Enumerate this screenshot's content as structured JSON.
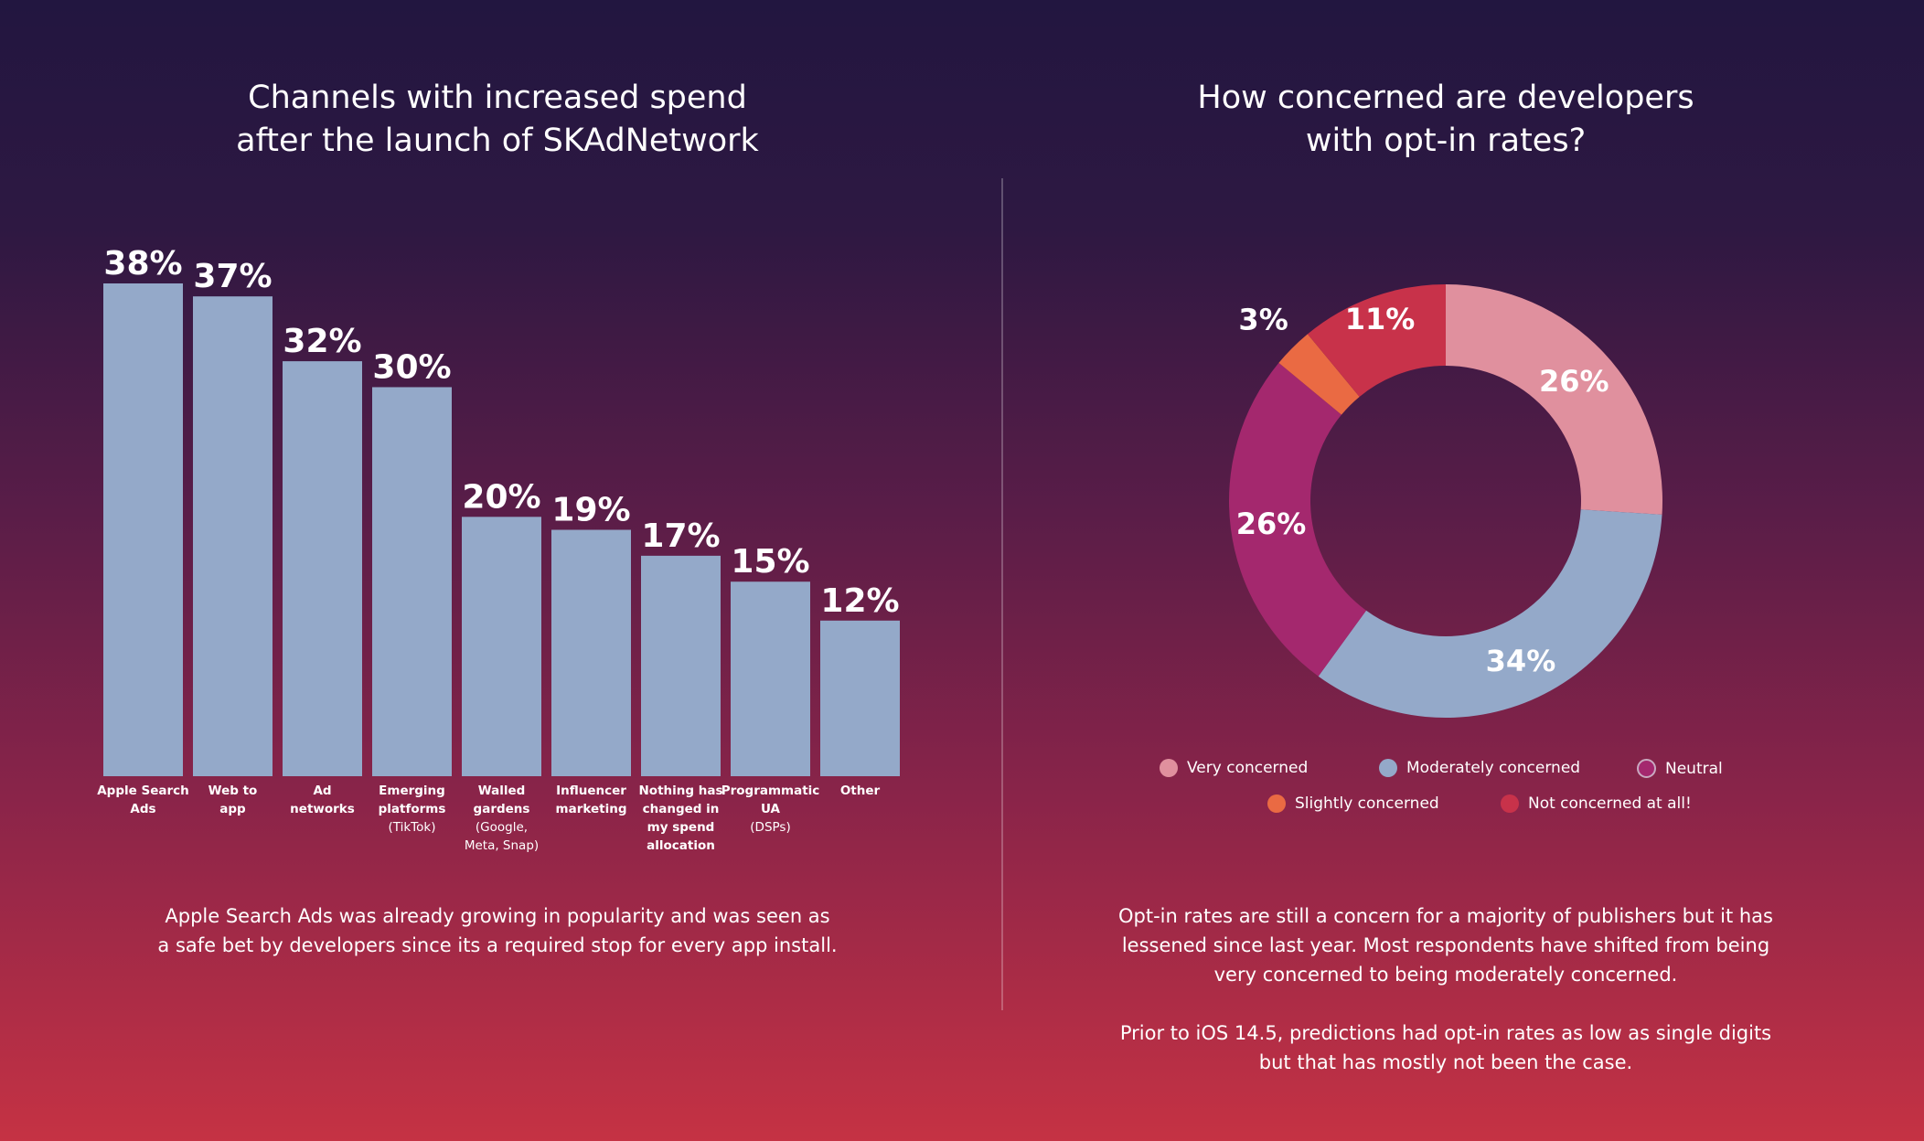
{
  "chart_data": [
    {
      "type": "bar",
      "title": "Channels with increased spend after the launch of SKAdNetwork",
      "title_lines": [
        "Channels with increased spend",
        "after the launch of SKAdNetwork"
      ],
      "categories": [
        "Apple Search Ads",
        "Web to app",
        "Ad networks",
        "Emerging platforms (TikTok)",
        "Walled gardens (Google, Meta, Snap)",
        "Influencer marketing",
        "Nothing has changed in my spend allocation",
        "Programmatic UA (DSPs)",
        "Other"
      ],
      "category_lines": [
        {
          "bold": [
            "Apple Search",
            "Ads"
          ],
          "light": []
        },
        {
          "bold": [
            "Web to",
            "app"
          ],
          "light": []
        },
        {
          "bold": [
            "Ad",
            "networks"
          ],
          "light": []
        },
        {
          "bold": [
            "Emerging",
            "platforms"
          ],
          "light": [
            "(TikTok)"
          ]
        },
        {
          "bold": [
            "Walled",
            "gardens"
          ],
          "light": [
            "(Google,",
            "Meta, Snap)"
          ]
        },
        {
          "bold": [
            "Influencer",
            "marketing"
          ],
          "light": []
        },
        {
          "bold": [
            "Nothing has",
            "changed in",
            "my spend",
            "allocation"
          ],
          "light": []
        },
        {
          "bold": [
            "Programmatic",
            "UA"
          ],
          "light": [
            "(DSPs)"
          ]
        },
        {
          "bold": [
            "Other"
          ],
          "light": []
        }
      ],
      "values": [
        38,
        37,
        32,
        30,
        20,
        19,
        17,
        15,
        12
      ],
      "data_labels": [
        "38%",
        "37%",
        "32%",
        "30%",
        "20%",
        "19%",
        "17%",
        "15%",
        "12%"
      ],
      "unit": "%",
      "ylim": [
        0,
        40
      ],
      "grid": false,
      "bar_color": "#94a9c9"
    },
    {
      "type": "pie",
      "donut": true,
      "title": "How concerned are developers with opt-in rates?",
      "title_lines": [
        "How concerned are developers",
        "with opt-in rates?"
      ],
      "slices": [
        {
          "name": "Very concerned",
          "value": 26,
          "label": "26%",
          "color": "#e0909e"
        },
        {
          "name": "Moderately concerned",
          "value": 34,
          "label": "34%",
          "color": "#94a9c9"
        },
        {
          "name": "Neutral",
          "value": 26,
          "label": "26%",
          "color": "#a4286e"
        },
        {
          "name": "Slightly concerned",
          "value": 3,
          "label": "3%",
          "color": "#ea6a43"
        },
        {
          "name": "Not concerned at all!",
          "value": 11,
          "label": "11%",
          "color": "#c8324a"
        }
      ],
      "legend_placement": "bottom"
    }
  ],
  "captions": {
    "left": [
      "Apple Search Ads was already growing in popularity and was seen as",
      "a safe bet by developers since its a required stop for every app install."
    ],
    "right_p1": [
      "Opt-in rates are still a concern for a majority of publishers but it has",
      "lessened since last year. Most respondents have shifted from being",
      "very concerned to being moderately concerned."
    ],
    "right_p2": [
      "Prior to iOS 14.5, predictions had opt-in rates as low as single digits",
      "but that has mostly not been the case."
    ]
  }
}
